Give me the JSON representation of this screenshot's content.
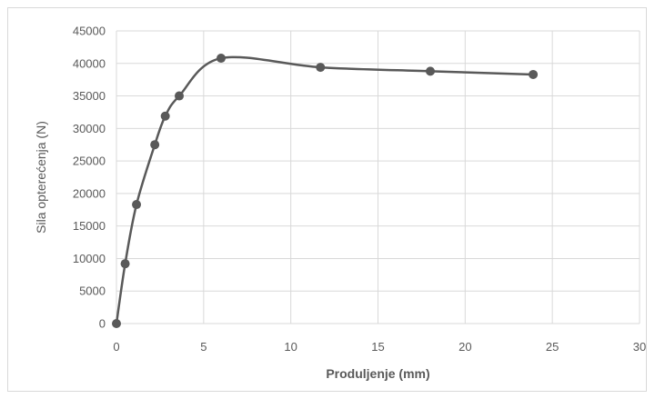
{
  "chart_data": {
    "type": "scatter",
    "title": "",
    "xlabel": "Produljenje (mm)",
    "ylabel": "Sila opterećenja (N)",
    "xlim": [
      0,
      30
    ],
    "ylim": [
      0,
      45000
    ],
    "xticks": [
      0,
      5,
      10,
      15,
      20,
      25,
      30
    ],
    "yticks": [
      0,
      5000,
      10000,
      15000,
      20000,
      25000,
      30000,
      35000,
      40000,
      45000
    ],
    "grid": true,
    "legend": "none",
    "line_style": "smooth",
    "colors": {
      "series": "#595959",
      "grid": "#d9d9d9",
      "text": "#595959"
    },
    "series": [
      {
        "x": [
          0,
          0.5,
          1.15,
          2.2,
          2.8,
          3.6,
          6.0,
          11.7,
          18.0,
          23.9
        ],
        "y": [
          0,
          9200,
          18300,
          27500,
          31900,
          35000,
          40800,
          39400,
          38800,
          38300
        ]
      }
    ]
  }
}
